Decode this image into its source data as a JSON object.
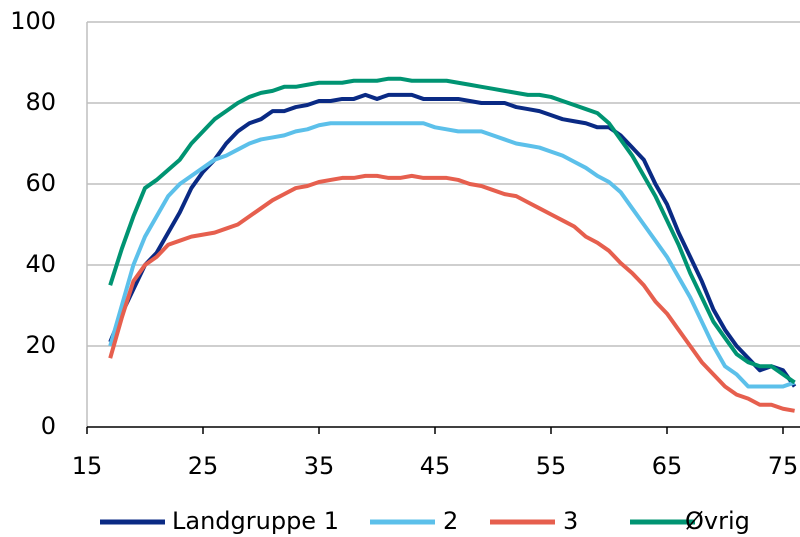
{
  "chart_data": {
    "type": "line",
    "x": [
      17,
      18,
      19,
      20,
      21,
      22,
      23,
      24,
      25,
      26,
      27,
      28,
      29,
      30,
      31,
      32,
      33,
      34,
      35,
      36,
      37,
      38,
      39,
      40,
      41,
      42,
      43,
      44,
      45,
      46,
      47,
      48,
      49,
      50,
      51,
      52,
      53,
      54,
      55,
      56,
      57,
      58,
      59,
      60,
      61,
      62,
      63,
      64,
      65,
      66,
      67,
      68,
      69,
      70,
      71,
      72,
      73,
      74,
      75,
      76
    ],
    "series": [
      {
        "name": "Landgruppe 1",
        "color": "#0a2a84",
        "values": [
          21,
          28,
          34,
          40,
          43,
          48,
          53,
          59,
          63,
          66,
          70,
          73,
          75,
          76,
          78,
          78,
          79,
          79.5,
          80.5,
          80.5,
          81,
          81,
          82,
          81,
          82,
          82,
          82,
          81,
          81,
          81,
          81,
          80.5,
          80,
          80,
          80,
          79,
          78.5,
          78,
          77,
          76,
          75.5,
          75,
          74,
          74,
          72,
          69,
          66,
          60,
          55,
          48,
          42,
          36,
          29,
          24,
          20,
          17,
          14,
          15,
          14,
          10
        ]
      },
      {
        "name": "2",
        "color": "#5cc0ea",
        "values": [
          20,
          30,
          40,
          47,
          52,
          57,
          60,
          62,
          64,
          66,
          67,
          68.5,
          70,
          71,
          71.5,
          72,
          73,
          73.5,
          74.5,
          75,
          75,
          75,
          75,
          75,
          75,
          75,
          75,
          75,
          74,
          73.5,
          73,
          73,
          73,
          72,
          71,
          70,
          69.5,
          69,
          68,
          67,
          65.5,
          64,
          62,
          60.5,
          58,
          54,
          50,
          46,
          42,
          37,
          32,
          26,
          20,
          15,
          13,
          10,
          10,
          10,
          10,
          11
        ]
      },
      {
        "name": "3",
        "color": "#e65f4e",
        "values": [
          17,
          27,
          36,
          40,
          42,
          45,
          46,
          47,
          47.5,
          48,
          49,
          50,
          52,
          54,
          56,
          57.5,
          59,
          59.5,
          60.5,
          61,
          61.5,
          61.5,
          62,
          62,
          61.5,
          61.5,
          62,
          61.5,
          61.5,
          61.5,
          61,
          60,
          59.5,
          58.5,
          57.5,
          57,
          55.5,
          54,
          52.5,
          51,
          49.5,
          47,
          45.5,
          43.5,
          40.5,
          38,
          35,
          31,
          28,
          24,
          20,
          16,
          13,
          10,
          8,
          7,
          5.5,
          5.5,
          4.5,
          4
        ]
      },
      {
        "name": "Øvrig",
        "color": "#009472",
        "values": [
          35,
          44,
          52,
          59,
          61,
          63.5,
          66,
          70,
          73,
          76,
          78,
          80,
          81.5,
          82.5,
          83,
          84,
          84,
          84.5,
          85,
          85,
          85,
          85.5,
          85.5,
          85.5,
          86,
          86,
          85.5,
          85.5,
          85.5,
          85.5,
          85,
          84.5,
          84,
          83.5,
          83,
          82.5,
          82,
          82,
          81.5,
          80.5,
          79.5,
          78.5,
          77.5,
          75,
          71,
          67,
          62,
          57,
          51,
          45,
          38,
          32,
          26,
          22,
          18,
          16,
          15,
          15,
          13,
          11
        ]
      }
    ],
    "xlim": [
      15,
      76
    ],
    "xticks": [
      15,
      25,
      35,
      45,
      55,
      65,
      75
    ],
    "ylim": [
      0,
      100
    ],
    "yticks": [
      0,
      20,
      40,
      60,
      80,
      100
    ],
    "grid": true
  }
}
